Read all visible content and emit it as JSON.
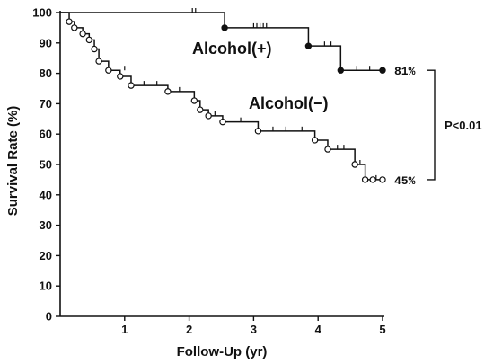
{
  "chart_data": {
    "type": "line",
    "xlabel": "Follow-Up (yr)",
    "ylabel": "Survival Rate (%)",
    "xlim": [
      0,
      5
    ],
    "ylim": [
      0,
      100
    ],
    "x_ticks": [
      "1",
      "2",
      "3",
      "4",
      "5"
    ],
    "y_ticks": [
      "0",
      "10",
      "20",
      "30",
      "40",
      "50",
      "60",
      "70",
      "80",
      "90",
      "100"
    ],
    "x_tick_values": [
      1,
      2,
      3,
      4,
      5
    ],
    "y_tick_values": [
      0,
      10,
      20,
      30,
      40,
      50,
      60,
      70,
      80,
      90,
      100
    ],
    "grid": false,
    "legend": "none",
    "series": [
      {
        "name": "Alcohol(+)",
        "marker": "filled-circle",
        "end_label": "81%",
        "steps": [
          [
            0.0,
            100
          ],
          [
            2.55,
            95
          ],
          [
            3.85,
            89
          ],
          [
            4.35,
            81
          ],
          [
            5.0,
            81
          ]
        ],
        "events": [
          [
            2.55,
            95
          ],
          [
            3.85,
            89
          ],
          [
            4.35,
            81
          ],
          [
            5.0,
            81
          ]
        ],
        "censored": [
          [
            2.05,
            100
          ],
          [
            2.1,
            100
          ],
          [
            3.0,
            95
          ],
          [
            3.05,
            95
          ],
          [
            3.1,
            95
          ],
          [
            3.15,
            95
          ],
          [
            3.2,
            95
          ],
          [
            4.1,
            89
          ],
          [
            4.2,
            89
          ],
          [
            4.6,
            81
          ],
          [
            4.8,
            81
          ]
        ]
      },
      {
        "name": "Alcohol(−)",
        "marker": "open-circle",
        "end_label": "45%",
        "steps": [
          [
            0.0,
            100
          ],
          [
            0.14,
            97
          ],
          [
            0.22,
            95
          ],
          [
            0.35,
            93
          ],
          [
            0.45,
            91
          ],
          [
            0.53,
            88
          ],
          [
            0.6,
            84
          ],
          [
            0.75,
            81
          ],
          [
            0.93,
            79
          ],
          [
            1.1,
            76
          ],
          [
            1.67,
            74
          ],
          [
            2.08,
            71
          ],
          [
            2.17,
            68
          ],
          [
            2.3,
            66
          ],
          [
            2.52,
            64
          ],
          [
            3.07,
            61
          ],
          [
            3.95,
            58
          ],
          [
            4.15,
            55
          ],
          [
            4.57,
            50
          ],
          [
            4.73,
            45
          ],
          [
            4.85,
            45
          ],
          [
            5.0,
            45
          ]
        ],
        "events": [
          [
            0.14,
            97
          ],
          [
            0.22,
            95
          ],
          [
            0.35,
            93
          ],
          [
            0.45,
            91
          ],
          [
            0.53,
            88
          ],
          [
            0.6,
            84
          ],
          [
            0.75,
            81
          ],
          [
            0.93,
            79
          ],
          [
            1.1,
            76
          ],
          [
            1.67,
            74
          ],
          [
            2.08,
            71
          ],
          [
            2.17,
            68
          ],
          [
            2.3,
            66
          ],
          [
            2.52,
            64
          ],
          [
            3.07,
            61
          ],
          [
            3.95,
            58
          ],
          [
            4.15,
            55
          ],
          [
            4.57,
            50
          ],
          [
            4.73,
            45
          ],
          [
            4.85,
            45
          ],
          [
            5.0,
            45
          ]
        ],
        "censored": [
          [
            1.0,
            81
          ],
          [
            1.3,
            76
          ],
          [
            1.5,
            76
          ],
          [
            1.85,
            74
          ],
          [
            2.4,
            66
          ],
          [
            2.8,
            64
          ],
          [
            3.3,
            61
          ],
          [
            3.5,
            61
          ],
          [
            3.75,
            61
          ],
          [
            4.3,
            55
          ],
          [
            4.4,
            55
          ],
          [
            4.65,
            50
          ],
          [
            4.9,
            45
          ]
        ]
      }
    ],
    "annotations": {
      "significance": "P<0.01"
    }
  }
}
